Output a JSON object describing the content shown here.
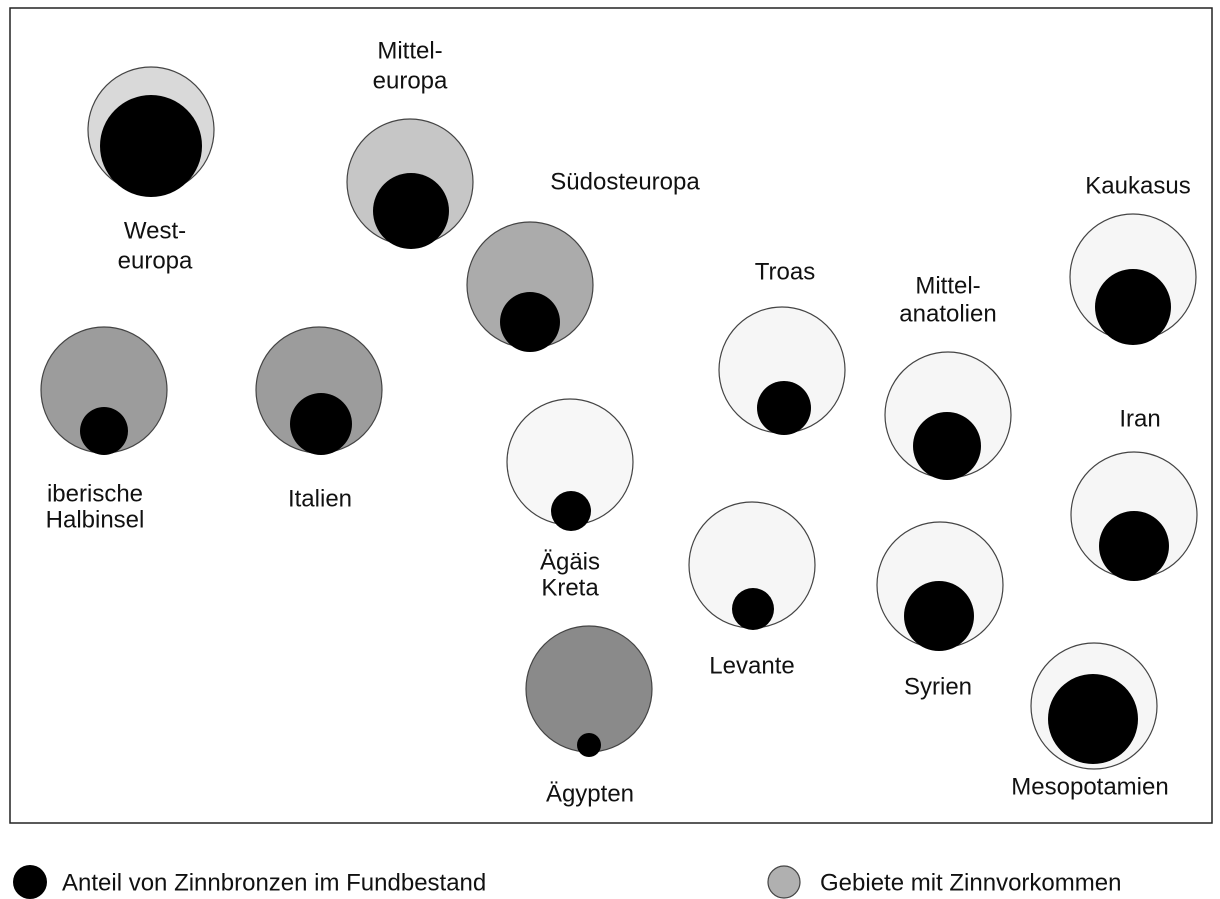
{
  "regions": [
    {
      "label": [
        "West-",
        "europa"
      ]
    },
    {
      "label": [
        "Mittel-",
        "europa"
      ]
    },
    {
      "label": [
        "Südosteuropa"
      ]
    },
    {
      "label": [
        "iberische",
        "Halbinsel"
      ]
    },
    {
      "label": [
        "Italien"
      ]
    },
    {
      "label": [
        "Ägäis",
        "Kreta"
      ]
    },
    {
      "label": [
        "Ägypten"
      ]
    },
    {
      "label": [
        "Troas"
      ]
    },
    {
      "label": [
        "Levante"
      ]
    },
    {
      "label": [
        "Mittel-",
        "anatolien"
      ]
    },
    {
      "label": [
        "Syrien"
      ]
    },
    {
      "label": [
        "Kaukasus"
      ]
    },
    {
      "label": [
        "Iran"
      ]
    },
    {
      "label": [
        "Mesopotamien"
      ]
    }
  ],
  "legend": [
    "Anteil von Zinnbronzen im Fundbestand",
    "Gebiete mit Zinnvorkommen"
  ]
}
